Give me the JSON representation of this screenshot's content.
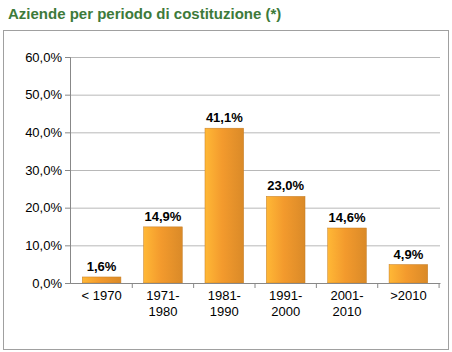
{
  "chart_data": {
    "type": "bar",
    "title": "Aziende per periodo di costituzione (*)",
    "categories": [
      "< 1970",
      "1971-1980",
      "1981-1990",
      "1991-2000",
      "2001-2010",
      ">2010"
    ],
    "values": [
      1.6,
      14.9,
      41.1,
      23.0,
      14.6,
      4.9
    ],
    "value_labels": [
      "1,6%",
      "14,9%",
      "41,1%",
      "23,0%",
      "14,6%",
      "4,9%"
    ],
    "color": "#f39a2d",
    "ylim": [
      0,
      60
    ],
    "yticks": [
      {
        "value": 0,
        "label": "0,0%"
      },
      {
        "value": 10,
        "label": "10,0%"
      },
      {
        "value": 20,
        "label": "20,0%"
      },
      {
        "value": 30,
        "label": "30,0%"
      },
      {
        "value": 40,
        "label": "40,0%"
      },
      {
        "value": 50,
        "label": "50,0%"
      },
      {
        "value": 60,
        "label": "60,0%"
      }
    ],
    "grid": true,
    "data_labels": true
  }
}
